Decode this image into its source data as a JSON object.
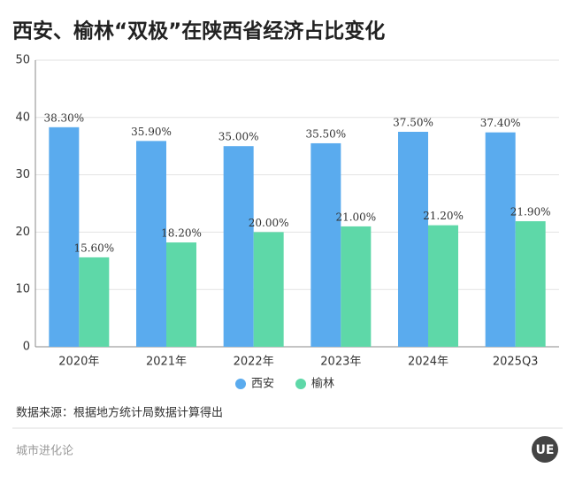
{
  "chart_data": {
    "type": "bar",
    "title": "西安、榆林“双极”在陕西省经济占比变化",
    "categories": [
      "2020年",
      "2021年",
      "2022年",
      "2023年",
      "2024年",
      "2025Q3"
    ],
    "series": [
      {
        "name": "西安",
        "color": "#5aabee",
        "values": [
          38.3,
          35.9,
          35.0,
          35.5,
          37.5,
          37.4
        ],
        "value_labels": [
          "38.30%",
          "35.90%",
          "35.00%",
          "35.50%",
          "37.50%",
          "37.40%"
        ]
      },
      {
        "name": "榆林",
        "color": "#5ed8a8",
        "values": [
          15.6,
          18.2,
          20.0,
          21.0,
          21.2,
          21.9
        ],
        "value_labels": [
          "15.60%",
          "18.20%",
          "20.00%",
          "21.00%",
          "21.20%",
          "21.90%"
        ]
      }
    ],
    "ylim": [
      0,
      50
    ],
    "yticks": [
      0,
      10,
      20,
      30,
      40,
      50
    ],
    "grid": true,
    "legend": "bottom"
  },
  "source": "数据来源：根据地方统计局数据计算得出",
  "footer": "城市进化论",
  "logo": "UE"
}
